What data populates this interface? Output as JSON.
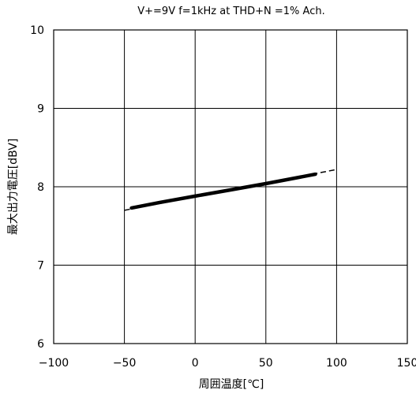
{
  "chart_data": {
    "type": "line",
    "title": "V+=9V f=1kHz at THD+N =1% Ach.",
    "xlabel": "周囲温度[℃]",
    "ylabel": "最大出力電圧[dBV]",
    "xlim": [
      -100,
      150
    ],
    "ylim": [
      6,
      10
    ],
    "x_ticks": [
      -100,
      -50,
      0,
      50,
      100,
      150
    ],
    "y_ticks": [
      6,
      7,
      8,
      9,
      10
    ],
    "x_tick_labels": [
      "−100",
      "−50",
      "0",
      "50",
      "100",
      "150"
    ],
    "y_tick_labels": [
      "6",
      "7",
      "8",
      "9",
      "10"
    ],
    "grid": true,
    "series": [
      {
        "style": "dashed-extrapolation",
        "x": [
          -50,
          100
        ],
        "y": [
          7.7,
          8.22
        ]
      },
      {
        "style": "bold-measured",
        "x": [
          -45,
          -25,
          0,
          25,
          50,
          85
        ],
        "y": [
          7.73,
          7.8,
          7.88,
          7.96,
          8.04,
          8.16
        ]
      }
    ],
    "colors": {
      "line": "#000000",
      "grid": "#000000",
      "background": "#ffffff"
    }
  }
}
